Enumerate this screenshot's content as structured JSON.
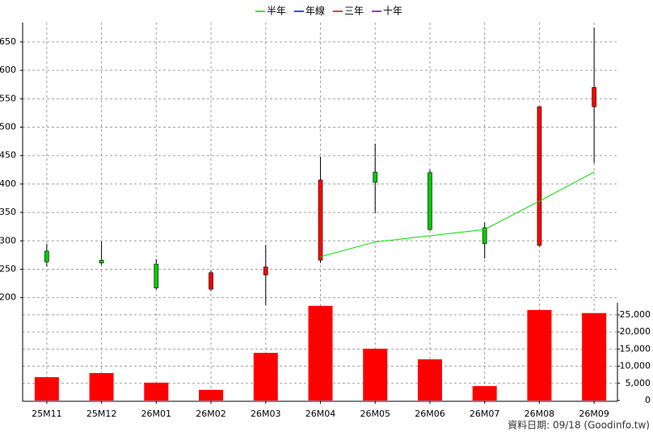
{
  "chart_data": {
    "type": "candlestick",
    "categories": [
      "25M11",
      "25M12",
      "26M01",
      "26M02",
      "26M03",
      "26M04",
      "26M05",
      "26M06",
      "26M07",
      "26M08",
      "26M09"
    ],
    "open": [
      282,
      266,
      259,
      215,
      240,
      266,
      421,
      420,
      323,
      292,
      536
    ],
    "high": [
      295,
      299,
      268,
      248,
      293,
      448,
      471,
      425,
      332,
      537,
      675
    ],
    "low": [
      255,
      257,
      214,
      212,
      187,
      261,
      349,
      318,
      269,
      290,
      437
    ],
    "close": [
      263,
      261,
      217,
      244,
      254,
      407,
      403,
      320,
      295,
      536,
      570
    ],
    "up_color": "#ff0000",
    "down_color": "#00cc00",
    "series": [
      {
        "name": "半年",
        "color": "#00dd00",
        "values": [
          null,
          null,
          null,
          null,
          null,
          272,
          298,
          309,
          320,
          370,
          421
        ]
      },
      {
        "name": "年線",
        "color": "#0000ff",
        "values": [
          null,
          null,
          null,
          null,
          null,
          null,
          null,
          null,
          null,
          null,
          null
        ]
      },
      {
        "name": "三年",
        "color": "#dd0000",
        "values": [
          null,
          null,
          null,
          null,
          null,
          null,
          null,
          null,
          null,
          null,
          null
        ]
      },
      {
        "name": "十年",
        "color": "#6600cc",
        "values": [
          null,
          null,
          null,
          null,
          null,
          null,
          null,
          null,
          null,
          null,
          null
        ]
      }
    ],
    "ylim": [
      191,
      684
    ],
    "yticks": [
      200,
      250,
      300,
      350,
      400,
      450,
      500,
      550,
      600,
      650
    ],
    "volume": [
      6800,
      8000,
      5200,
      3100,
      13900,
      27600,
      15100,
      12000,
      4200,
      26400,
      25500
    ],
    "volume_color": "#ff0000",
    "y2lim": [
      0,
      28500
    ],
    "y2ticks": [
      0,
      {
        "value": 5000,
        "label": "5,000"
      },
      {
        "value": 10000,
        "label": "10,000"
      },
      {
        "value": 15000,
        "label": "15,000"
      },
      {
        "value": 20000,
        "label": "20,000"
      },
      {
        "value": 25000,
        "label": "25,000"
      }
    ],
    "grid": true,
    "legend": "top",
    "source": "資料日期: 09/18  (Goodinfo.tw)"
  }
}
